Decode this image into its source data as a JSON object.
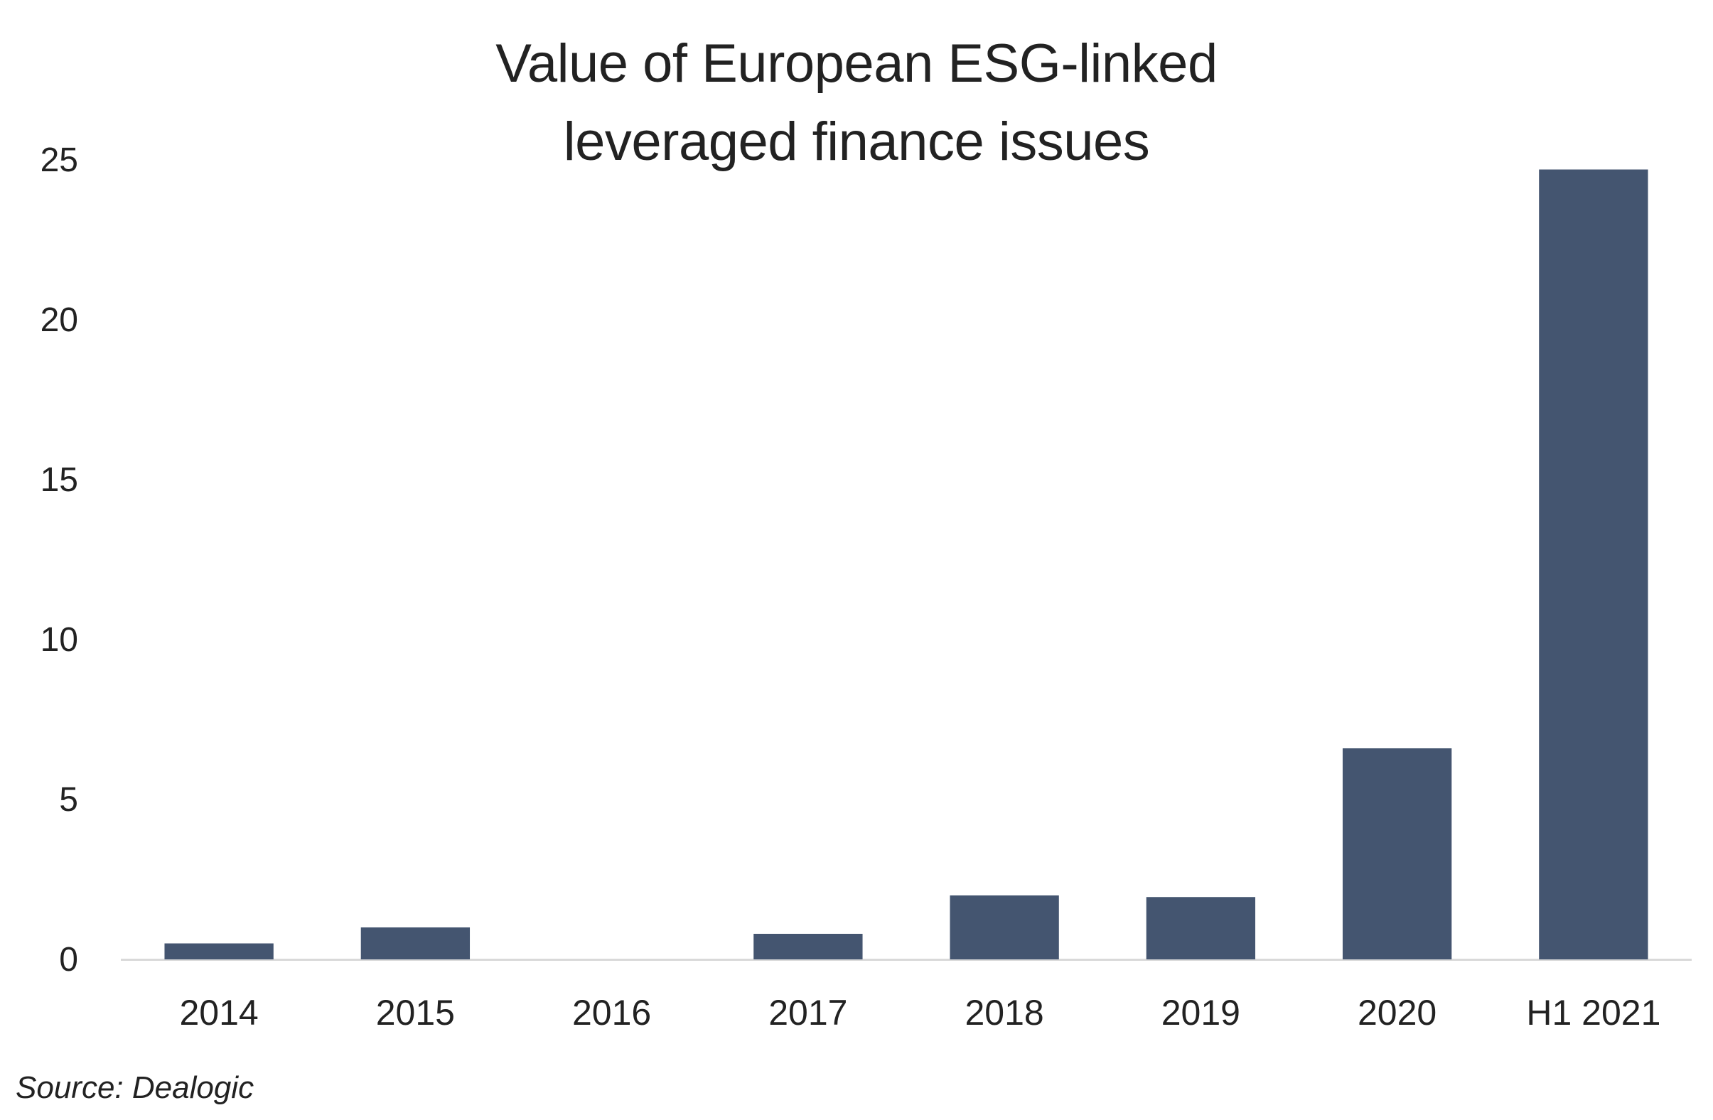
{
  "chart_data": {
    "type": "bar",
    "title": [
      "Value of European ESG-linked",
      "leveraged finance issues"
    ],
    "categories": [
      "2014",
      "2015",
      "2016",
      "2017",
      "2018",
      "2019",
      "2020",
      "H1 2021"
    ],
    "values": [
      0.5,
      1.0,
      0,
      0.8,
      2.0,
      1.95,
      6.6,
      24.7
    ],
    "ylim": [
      0,
      25
    ],
    "yticks": [
      "0",
      "5",
      "10",
      "15",
      "20",
      "25"
    ],
    "grid": false,
    "bar_color": "#445570",
    "axis_color": "#d9d9d9",
    "source": "Source: Dealogic"
  }
}
